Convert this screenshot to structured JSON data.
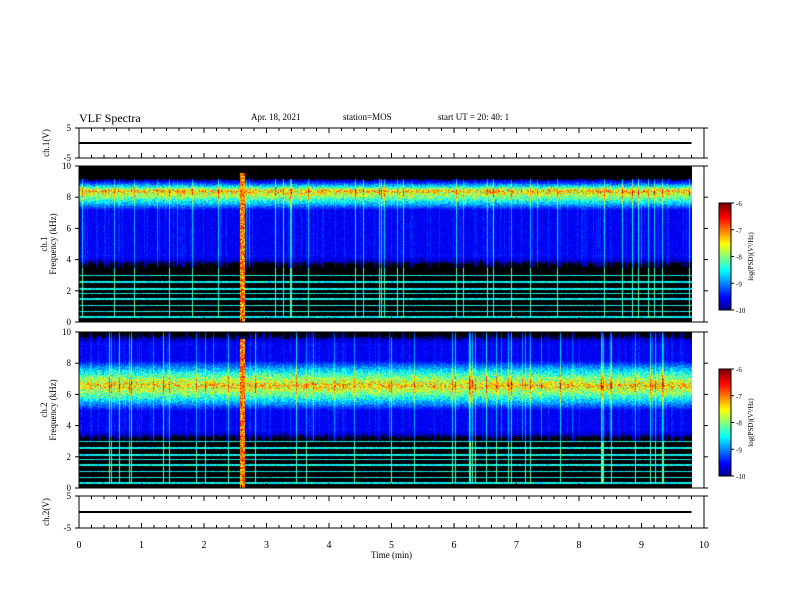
{
  "header": {
    "title": "VLF Spectra",
    "date": "Apr. 18, 2021",
    "station": "station=MOS",
    "start": "start  UT  =   20: 40: 1"
  },
  "chart_data": [
    {
      "type": "line",
      "name": "ch1-waveform",
      "ylabel": "ch.1(V)",
      "ylim": [
        -5,
        5
      ],
      "yticks": [
        "5",
        "-5"
      ],
      "xlim": [
        0,
        10
      ],
      "x": [
        0,
        9.8
      ],
      "y": [
        0,
        0
      ]
    },
    {
      "type": "heatmap",
      "name": "ch1-spectrogram",
      "ylabel": "ch.1\nFrequency (kHz)",
      "ylim": [
        0,
        10
      ],
      "yticks": [
        "0",
        "2",
        "4",
        "6",
        "8",
        "10"
      ],
      "xlim": [
        0,
        10
      ],
      "x_data_extent": [
        0,
        9.8
      ],
      "colorbar": {
        "label": "log(PSD)(V²/Hz)",
        "range": [
          -10,
          -6
        ],
        "ticks": [
          "-6",
          "-7",
          "-8",
          "-9",
          "-10"
        ]
      },
      "bands_khz": [
        3.5,
        9.2
      ],
      "peak_band_khz": [
        7.8,
        9.0
      ],
      "notes": "impulsive vertical sferics across band with persistent narrowband lines below 3 kHz; strong broadband event near 2.6 min"
    },
    {
      "type": "heatmap",
      "name": "ch2-spectrogram",
      "ylabel": "ch.2\nFrequency (kHz)",
      "ylim": [
        0,
        10
      ],
      "yticks": [
        "0",
        "2",
        "4",
        "6",
        "8",
        "10"
      ],
      "xlim": [
        0,
        10
      ],
      "x_data_extent": [
        0,
        9.8
      ],
      "colorbar": {
        "label": "log(PSD)(V²/Hz)",
        "range": [
          -10,
          -6
        ],
        "ticks": [
          "-6",
          "-7",
          "-8",
          "-9",
          "-10"
        ]
      },
      "bands_khz": [
        3.0,
        10.0
      ],
      "peak_band_khz": [
        5.8,
        7.4
      ],
      "notes": "broad continuous emission centered ~6.5 kHz, narrowband lines below 2.5 kHz"
    },
    {
      "type": "line",
      "name": "ch2-waveform",
      "ylabel": "ch.2(V)",
      "ylim": [
        -5,
        5
      ],
      "yticks": [
        "5",
        "-5"
      ],
      "xlim": [
        0,
        10
      ],
      "x": [
        0,
        9.8
      ],
      "y": [
        0,
        0
      ]
    }
  ],
  "xaxis": {
    "label": "Time  (min)",
    "ticks": [
      "0",
      "1",
      "2",
      "3",
      "4",
      "5",
      "6",
      "7",
      "8",
      "9",
      "10"
    ]
  },
  "colors": {
    "background": "#000000",
    "axis": "#000000"
  }
}
